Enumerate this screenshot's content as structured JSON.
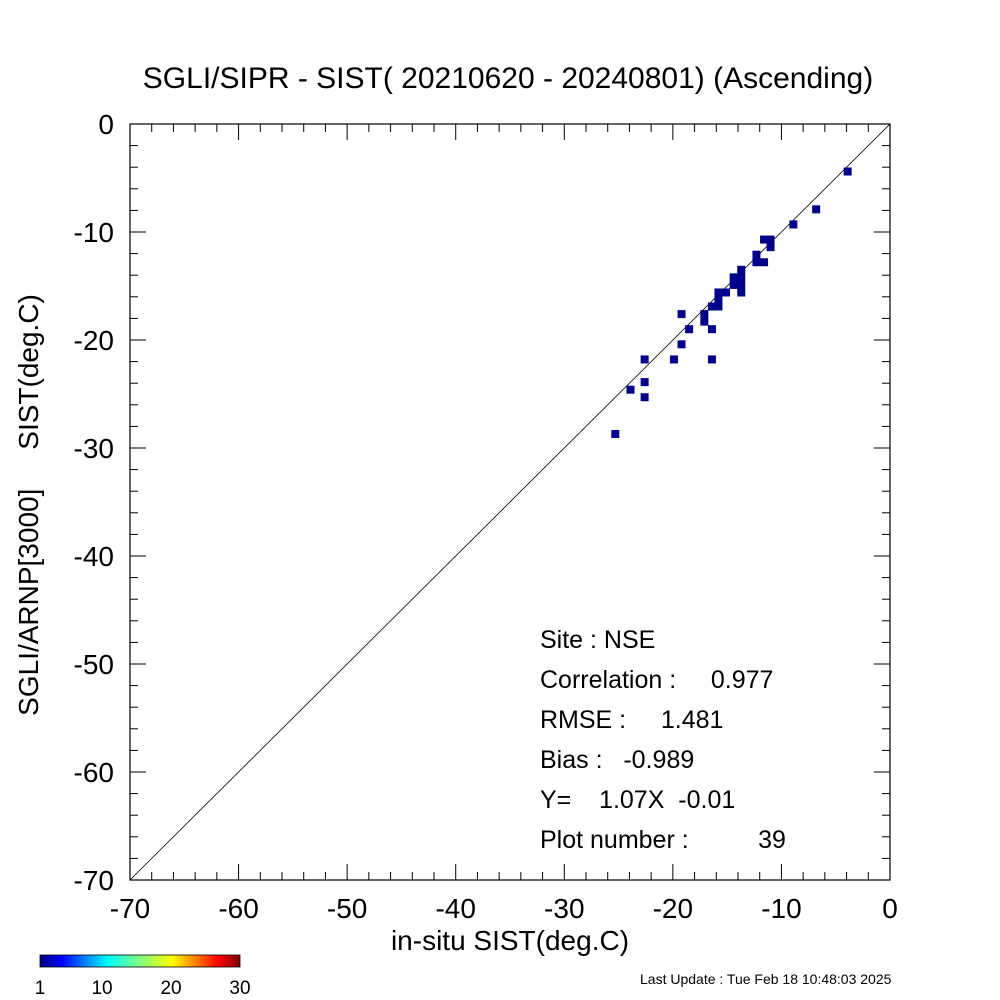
{
  "chart_data": {
    "type": "scatter",
    "title": "SGLI/SIPR - SIST( 20210620 - 20240801) (Ascending)",
    "xlabel": "in-situ SIST(deg.C)",
    "ylabel": "SGLI/ARNP[3000]     SIST(deg.C)",
    "xlim": [
      -70,
      0
    ],
    "ylim": [
      -70,
      0
    ],
    "x_ticks": [
      -70,
      -60,
      -50,
      -40,
      -30,
      -20,
      -10,
      0
    ],
    "y_ticks": [
      -70,
      -60,
      -50,
      -40,
      -30,
      -20,
      -10,
      0
    ],
    "x_tick_labels": [
      "-70",
      "-60",
      "-50",
      "-40",
      "-30",
      "-20",
      "-10",
      "0"
    ],
    "y_tick_labels": [
      "-70",
      "-60",
      "-50",
      "-40",
      "-30",
      "-20",
      "-10",
      "0"
    ],
    "reference_line": "1:1",
    "grid": false,
    "marker_color": "#00008b",
    "points": [
      {
        "x": -25.3,
        "y": -28.7
      },
      {
        "x": -23.9,
        "y": -24.6
      },
      {
        "x": -22.6,
        "y": -21.8
      },
      {
        "x": -22.6,
        "y": -23.9
      },
      {
        "x": -22.6,
        "y": -25.3
      },
      {
        "x": -19.9,
        "y": -21.8
      },
      {
        "x": -19.2,
        "y": -20.4
      },
      {
        "x": -19.2,
        "y": -17.6
      },
      {
        "x": -18.5,
        "y": -19.0
      },
      {
        "x": -17.1,
        "y": -17.6
      },
      {
        "x": -17.1,
        "y": -18.3
      },
      {
        "x": -16.4,
        "y": -16.9
      },
      {
        "x": -16.4,
        "y": -19.0
      },
      {
        "x": -16.4,
        "y": -21.8
      },
      {
        "x": -15.8,
        "y": -16.2
      },
      {
        "x": -15.8,
        "y": -16.9
      },
      {
        "x": -15.8,
        "y": -15.6
      },
      {
        "x": -15.1,
        "y": -15.6
      },
      {
        "x": -14.4,
        "y": -14.9
      },
      {
        "x": -14.4,
        "y": -14.2
      },
      {
        "x": -13.7,
        "y": -14.2
      },
      {
        "x": -13.7,
        "y": -14.9
      },
      {
        "x": -13.7,
        "y": -15.6
      },
      {
        "x": -13.7,
        "y": -13.5
      },
      {
        "x": -12.3,
        "y": -12.1
      },
      {
        "x": -12.3,
        "y": -12.8
      },
      {
        "x": -11.6,
        "y": -12.8
      },
      {
        "x": -11.6,
        "y": -10.7
      },
      {
        "x": -11.0,
        "y": -10.7
      },
      {
        "x": -11.0,
        "y": -11.4
      },
      {
        "x": -8.9,
        "y": -9.3
      },
      {
        "x": -6.8,
        "y": -7.9
      },
      {
        "x": -3.9,
        "y": -4.4
      }
    ],
    "stats": {
      "site": "Site : NSE",
      "correlation": "Correlation :     0.977",
      "rmse": "RMSE :     1.481",
      "bias": "Bias :   -0.989",
      "fit": "Y=    1.07X  -0.01",
      "plot_number": "Plot number :          39"
    },
    "colorbar": {
      "colormap": "jet",
      "min": 1,
      "max": 30,
      "tick_labels": [
        "1",
        "10",
        "20",
        "30"
      ],
      "tick_values": [
        1,
        10,
        20,
        30
      ]
    }
  },
  "footer": {
    "last_update": "Last Update : Tue Feb 18 10:48:03 2025"
  }
}
